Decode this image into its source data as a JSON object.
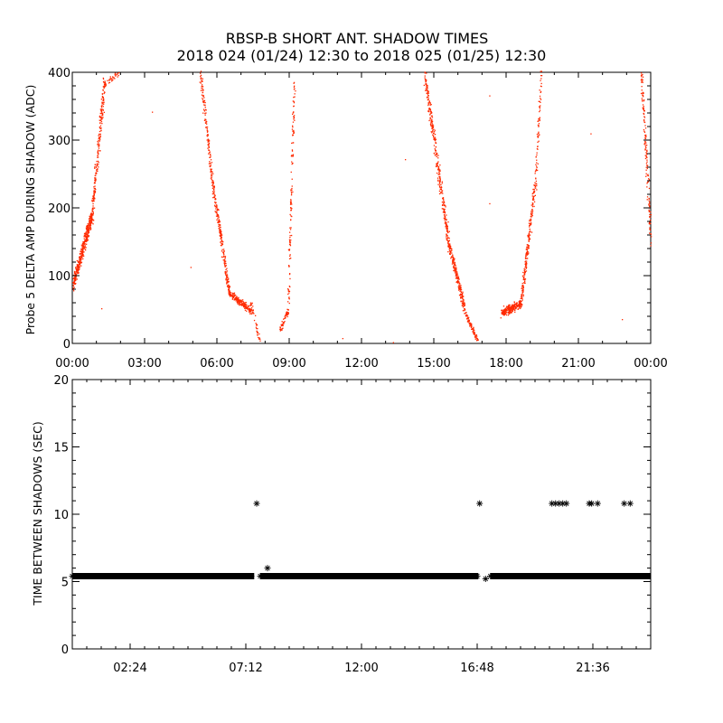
{
  "title": {
    "line1": "RBSP-B SHORT ANT. SHADOW TIMES",
    "line2": "2018 024 (01/24) 12:30 to 2018 025 (01/25) 12:30"
  },
  "colors": {
    "series_top": "#ff2a00",
    "series_bottom": "#000000",
    "axes": "#000000",
    "background": "#ffffff"
  },
  "chart_data": [
    {
      "type": "scatter",
      "ylabel": "Probe 5 DELTA AMP DURING SHADOW (ADC)",
      "xlim_hours": [
        0,
        24
      ],
      "ylim": [
        0,
        400
      ],
      "x_ticks": [
        {
          "value": 0,
          "label": "00:00"
        },
        {
          "value": 3,
          "label": "03:00"
        },
        {
          "value": 6,
          "label": "06:00"
        },
        {
          "value": 9,
          "label": "09:00"
        },
        {
          "value": 12,
          "label": "12:00"
        },
        {
          "value": 15,
          "label": "15:00"
        },
        {
          "value": 18,
          "label": "18:00"
        },
        {
          "value": 21,
          "label": "21:00"
        },
        {
          "value": 24,
          "label": "00:00"
        }
      ],
      "y_ticks": [
        0,
        100,
        200,
        300,
        400
      ],
      "segments": [
        {
          "x0": 0.0,
          "y0": 85,
          "x1": 0.8,
          "y1": 190,
          "spread": 25,
          "density": 420
        },
        {
          "x0": 0.8,
          "y0": 190,
          "x1": 1.3,
          "y1": 380,
          "spread": 45,
          "density": 220
        },
        {
          "x0": 1.3,
          "y0": 380,
          "x1": 1.9,
          "y1": 400,
          "spread": 15,
          "density": 40
        },
        {
          "x0": 5.3,
          "y0": 400,
          "x1": 5.8,
          "y1": 240,
          "spread": 30,
          "density": 140
        },
        {
          "x0": 5.8,
          "y0": 240,
          "x1": 6.5,
          "y1": 75,
          "spread": 20,
          "density": 230
        },
        {
          "x0": 6.5,
          "y0": 75,
          "x1": 7.4,
          "y1": 48,
          "spread": 12,
          "density": 200
        },
        {
          "x0": 7.4,
          "y0": 60,
          "x1": 7.75,
          "y1": 5,
          "spread": 5,
          "density": 40
        },
        {
          "x0": 8.6,
          "y0": 20,
          "x1": 8.95,
          "y1": 50,
          "spread": 8,
          "density": 60
        },
        {
          "x0": 8.95,
          "y0": 70,
          "x1": 9.2,
          "y1": 385,
          "spread": 25,
          "density": 130
        },
        {
          "x0": 14.6,
          "y0": 400,
          "x1": 15.6,
          "y1": 150,
          "spread": 35,
          "density": 330
        },
        {
          "x0": 15.6,
          "y0": 150,
          "x1": 16.3,
          "y1": 45,
          "spread": 18,
          "density": 230
        },
        {
          "x0": 16.3,
          "y0": 45,
          "x1": 16.8,
          "y1": 5,
          "spread": 8,
          "density": 90
        },
        {
          "x0": 17.8,
          "y0": 45,
          "x1": 18.6,
          "y1": 60,
          "spread": 15,
          "density": 260
        },
        {
          "x0": 18.6,
          "y0": 60,
          "x1": 19.2,
          "y1": 240,
          "spread": 30,
          "density": 220
        },
        {
          "x0": 19.2,
          "y0": 240,
          "x1": 19.45,
          "y1": 400,
          "spread": 20,
          "density": 70
        },
        {
          "x0": 23.6,
          "y0": 400,
          "x1": 24.0,
          "y1": 150,
          "spread": 40,
          "density": 150
        }
      ],
      "outliers": [
        {
          "x": 3.3,
          "y": 342
        },
        {
          "x": 4.9,
          "y": 113
        },
        {
          "x": 11.2,
          "y": 8
        },
        {
          "x": 13.3,
          "y": 2
        },
        {
          "x": 13.8,
          "y": 272
        },
        {
          "x": 17.3,
          "y": 366
        },
        {
          "x": 17.3,
          "y": 207
        },
        {
          "x": 22.8,
          "y": 36
        },
        {
          "x": 1.2,
          "y": 52
        },
        {
          "x": 21.5,
          "y": 310
        }
      ]
    },
    {
      "type": "scatter",
      "ylabel": "TIME BETWEEN SHADOWS (SEC)",
      "xlim_hours": [
        0,
        24
      ],
      "ylim": [
        0,
        20
      ],
      "x_ticks": [
        {
          "value": 2.4,
          "label": "02:24"
        },
        {
          "value": 7.2,
          "label": "07:12"
        },
        {
          "value": 12.0,
          "label": "12:00"
        },
        {
          "value": 16.8,
          "label": "16:48"
        },
        {
          "value": 21.6,
          "label": "21:36"
        }
      ],
      "y_ticks": [
        0,
        5,
        10,
        15,
        20
      ],
      "baseline_value": 5.4,
      "baseline_ranges": [
        [
          0.0,
          7.55
        ],
        [
          7.8,
          16.85
        ],
        [
          17.35,
          24.0
        ]
      ],
      "points": [
        {
          "x": 7.65,
          "y": 10.8
        },
        {
          "x": 8.1,
          "y": 6.0
        },
        {
          "x": 16.9,
          "y": 10.8
        },
        {
          "x": 17.15,
          "y": 5.2
        },
        {
          "x": 19.9,
          "y": 10.8
        },
        {
          "x": 20.05,
          "y": 10.8
        },
        {
          "x": 20.2,
          "y": 10.8
        },
        {
          "x": 20.35,
          "y": 10.8
        },
        {
          "x": 20.5,
          "y": 10.8
        },
        {
          "x": 21.45,
          "y": 10.8
        },
        {
          "x": 21.55,
          "y": 10.8
        },
        {
          "x": 21.8,
          "y": 10.8
        },
        {
          "x": 22.9,
          "y": 10.8
        },
        {
          "x": 23.15,
          "y": 10.8
        }
      ]
    }
  ]
}
